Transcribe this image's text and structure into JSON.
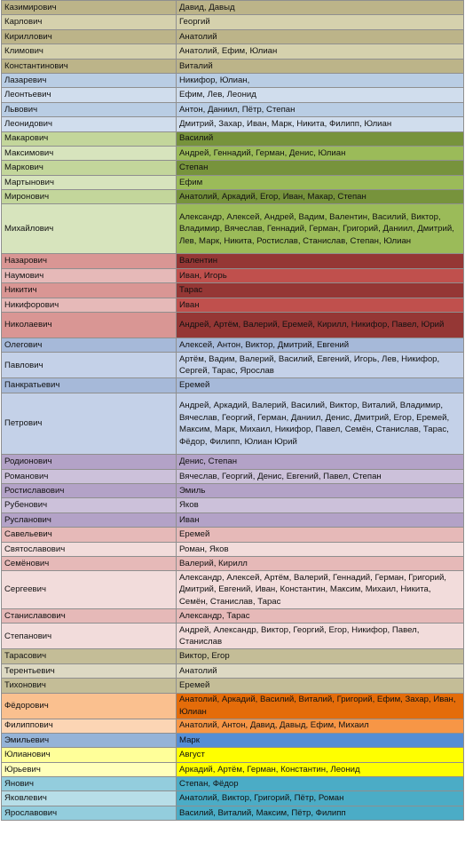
{
  "table": {
    "rows": [
      {
        "p": "Казимирович",
        "n": "Давид, Давыд",
        "c1": "#bcb489",
        "c2": "#bcb489"
      },
      {
        "p": "Карлович",
        "n": "Георгий",
        "c1": "#d5d1ad",
        "c2": "#d5d1ad"
      },
      {
        "p": "Кириллович",
        "n": "Анатолий",
        "c1": "#bcb489",
        "c2": "#bcb489"
      },
      {
        "p": "Климович",
        "n": "Анатолий, Ефим, Юлиан",
        "c1": "#d5d1ad",
        "c2": "#d5d1ad"
      },
      {
        "p": "Константинович",
        "n": "Виталий",
        "c1": "#bcb489",
        "c2": "#bcb489"
      },
      {
        "p": "Лазаревич",
        "n": "Никифор, Юлиан,",
        "c1": "#b9cde4",
        "c2": "#b9cde4"
      },
      {
        "p": "Леонтьевич",
        "n": "Ефим, Лев, Леонид",
        "c1": "#d0dded",
        "c2": "#d0dded"
      },
      {
        "p": "Львович",
        "n": "Антон, Даниил, Пётр, Степан",
        "c1": "#b9cde4",
        "c2": "#b9cde4"
      },
      {
        "p": "Леонидович",
        "n": "Дмитрий, Захар, Иван, Марк, Никита, Филипп, Юлиан",
        "c1": "#d0dded",
        "c2": "#d0dded"
      },
      {
        "p": "Макарович",
        "n": "Василий",
        "c1": "#c3d69b",
        "c2": "#77933c"
      },
      {
        "p": "Максимович",
        "n": "Андрей, Геннадий, Герман, Денис, Юлиан",
        "c1": "#d7e4bd",
        "c2": "#9bbb59"
      },
      {
        "p": "Маркович",
        "n": "Степан",
        "c1": "#c3d69b",
        "c2": "#77933c"
      },
      {
        "p": "Мартынович",
        "n": "Ефим",
        "c1": "#d7e4bd",
        "c2": "#9bbb59"
      },
      {
        "p": "Миронович",
        "n": "Анатолий, Аркадий, Егор, Иван, Макар, Степан",
        "c1": "#c3d69b",
        "c2": "#77933c"
      },
      {
        "p": "Михайлович",
        "n": "Александр, Алексей, Андрей, Вадим, Валентин, Василий, Виктор, Владимир, Вячеслав, Геннадий, Герман, Григорий, Даниил, Дмитрий, Лев, Марк, Никита, Ростислав, Станислав, Степан, Юлиан",
        "c1": "#d7e4bd",
        "c2": "#9bbb59"
      },
      {
        "p": "Назарович",
        "n": "Валентин",
        "c1": "#d99694",
        "c2": "#953735"
      },
      {
        "p": "Наумович",
        "n": "Иван, Игорь",
        "c1": "#e6b9b8",
        "c2": "#c0504d"
      },
      {
        "p": "Никитич",
        "n": "Тарас",
        "c1": "#d99694",
        "c2": "#953735"
      },
      {
        "p": "Никифорович",
        "n": "Иван",
        "c1": "#e6b9b8",
        "c2": "#c0504d"
      },
      {
        "p": "Николаевич",
        "n": "Андрей, Артём, Валерий, Еремей, Кирилл, Никифор, Павел, Юрий",
        "c1": "#d99694",
        "c2": "#953735"
      },
      {
        "p": "Олегович",
        "n": "Алексей, Антон, Виктор, Дмитрий, Евгений",
        "c1": "#a6b9d9",
        "c2": "#a6b9d9"
      },
      {
        "p": "Павлович",
        "n": "Артём, Вадим, Валерий, Василий, Евгений, Игорь, Лев, Никифор, Сергей, Тарас, Ярослав",
        "c1": "#c4d1e8",
        "c2": "#c4d1e8"
      },
      {
        "p": "Панкратьевич",
        "n": "Еремей",
        "c1": "#a6b9d9",
        "c2": "#a6b9d9"
      },
      {
        "p": "Петрович",
        "n": "Андрей, Аркадий, Валерий, Василий, Виктор, Виталий, Владимир, Вячеслав, Георгий, Герман, Даниил, Денис, Дмитрий, Егор, Еремей, Максим, Марк, Михаил, Никифор, Павел, Семён, Станислав, Тарас, Фёдор, Филипп, Юлиан Юрий",
        "c1": "#c4d1e8",
        "c2": "#c4d1e8"
      },
      {
        "p": "Родионович",
        "n": "Денис, Степан",
        "c1": "#b3a2c7",
        "c2": "#b3a2c7"
      },
      {
        "p": "Романович",
        "n": "Вячеслав, Георгий, Денис, Евгений, Павел, Степан",
        "c1": "#ccc1da",
        "c2": "#ccc1da"
      },
      {
        "p": "Ростиславович",
        "n": "Эмиль",
        "c1": "#b3a2c7",
        "c2": "#b3a2c7"
      },
      {
        "p": "Рубенович",
        "n": "Яков",
        "c1": "#ccc1da",
        "c2": "#ccc1da"
      },
      {
        "p": "Русланович",
        "n": "Иван",
        "c1": "#b3a2c7",
        "c2": "#b3a2c7"
      },
      {
        "p": "Савельевич",
        "n": "Еремей",
        "c1": "#e6b9b8",
        "c2": "#e6b9b8"
      },
      {
        "p": "Святославович",
        "n": "Роман, Яков",
        "c1": "#f2dcdb",
        "c2": "#f2dcdb"
      },
      {
        "p": "Семёнович",
        "n": "Валерий, Кирилл",
        "c1": "#e6b9b8",
        "c2": "#e6b9b8"
      },
      {
        "p": "Сергеевич",
        "n": "Александр, Алексей, Артём, Валерий, Геннадий, Герман, Григорий, Дмитрий, Евгений, Иван, Константин, Максим, Михаил, Никита, Семён, Станислав, Тарас",
        "c1": "#f2dcdb",
        "c2": "#f2dcdb"
      },
      {
        "p": "Станиславович",
        "n": "Александр, Тарас",
        "c1": "#e6b9b8",
        "c2": "#e6b9b8"
      },
      {
        "p": "Степанович",
        "n": "Андрей, Александр, Виктор, Георгий, Егор, Никифор, Павел, Станислав",
        "c1": "#f2dcdb",
        "c2": "#f2dcdb"
      },
      {
        "p": "Тарасович",
        "n": "Виктор, Егор",
        "c1": "#c4bd97",
        "c2": "#c4bd97"
      },
      {
        "p": "Терентьевич",
        "n": "Анатолий",
        "c1": "#ddd9c3",
        "c2": "#ddd9c3"
      },
      {
        "p": "Тихонович",
        "n": "Еремей",
        "c1": "#c4bd97",
        "c2": "#c4bd97"
      },
      {
        "p": "Фёдорович",
        "n": "Анатолий, Аркадий, Василий, Виталий, Григорий, Ефим, Захар, Иван, Юлиан",
        "c1": "#fac08f",
        "c2": "#e46c0a"
      },
      {
        "p": "Филиппович",
        "n": "Анатолий, Антон, Давид, Давыд, Ефим, Михаил",
        "c1": "#fcd5b4",
        "c2": "#f79646"
      },
      {
        "p": "Эмильевич",
        "n": "Марк",
        "c1": "#95b3d7",
        "c2": "#558ed5"
      },
      {
        "p": "Юлианович",
        "n": "Август",
        "c1": "#ffff99",
        "c2": "#ffff00"
      },
      {
        "p": "Юрьевич",
        "n": "Аркадий, Артём, Герман, Константин, Леонид",
        "c1": "#ffffbb",
        "c2": "#ffff00"
      },
      {
        "p": "Янович",
        "n": "Степан, Фёдор",
        "c1": "#93cddd",
        "c2": "#4bacc6"
      },
      {
        "p": "Яковлевич",
        "n": "Анатолий, Виктор, Григорий, Пётр, Роман",
        "c1": "#b7dee8",
        "c2": "#4bacc6"
      },
      {
        "p": "Ярославович",
        "n": "Василий, Виталий, Максим, Пётр, Филипп",
        "c1": "#93cddd",
        "c2": "#4bacc6"
      }
    ]
  }
}
